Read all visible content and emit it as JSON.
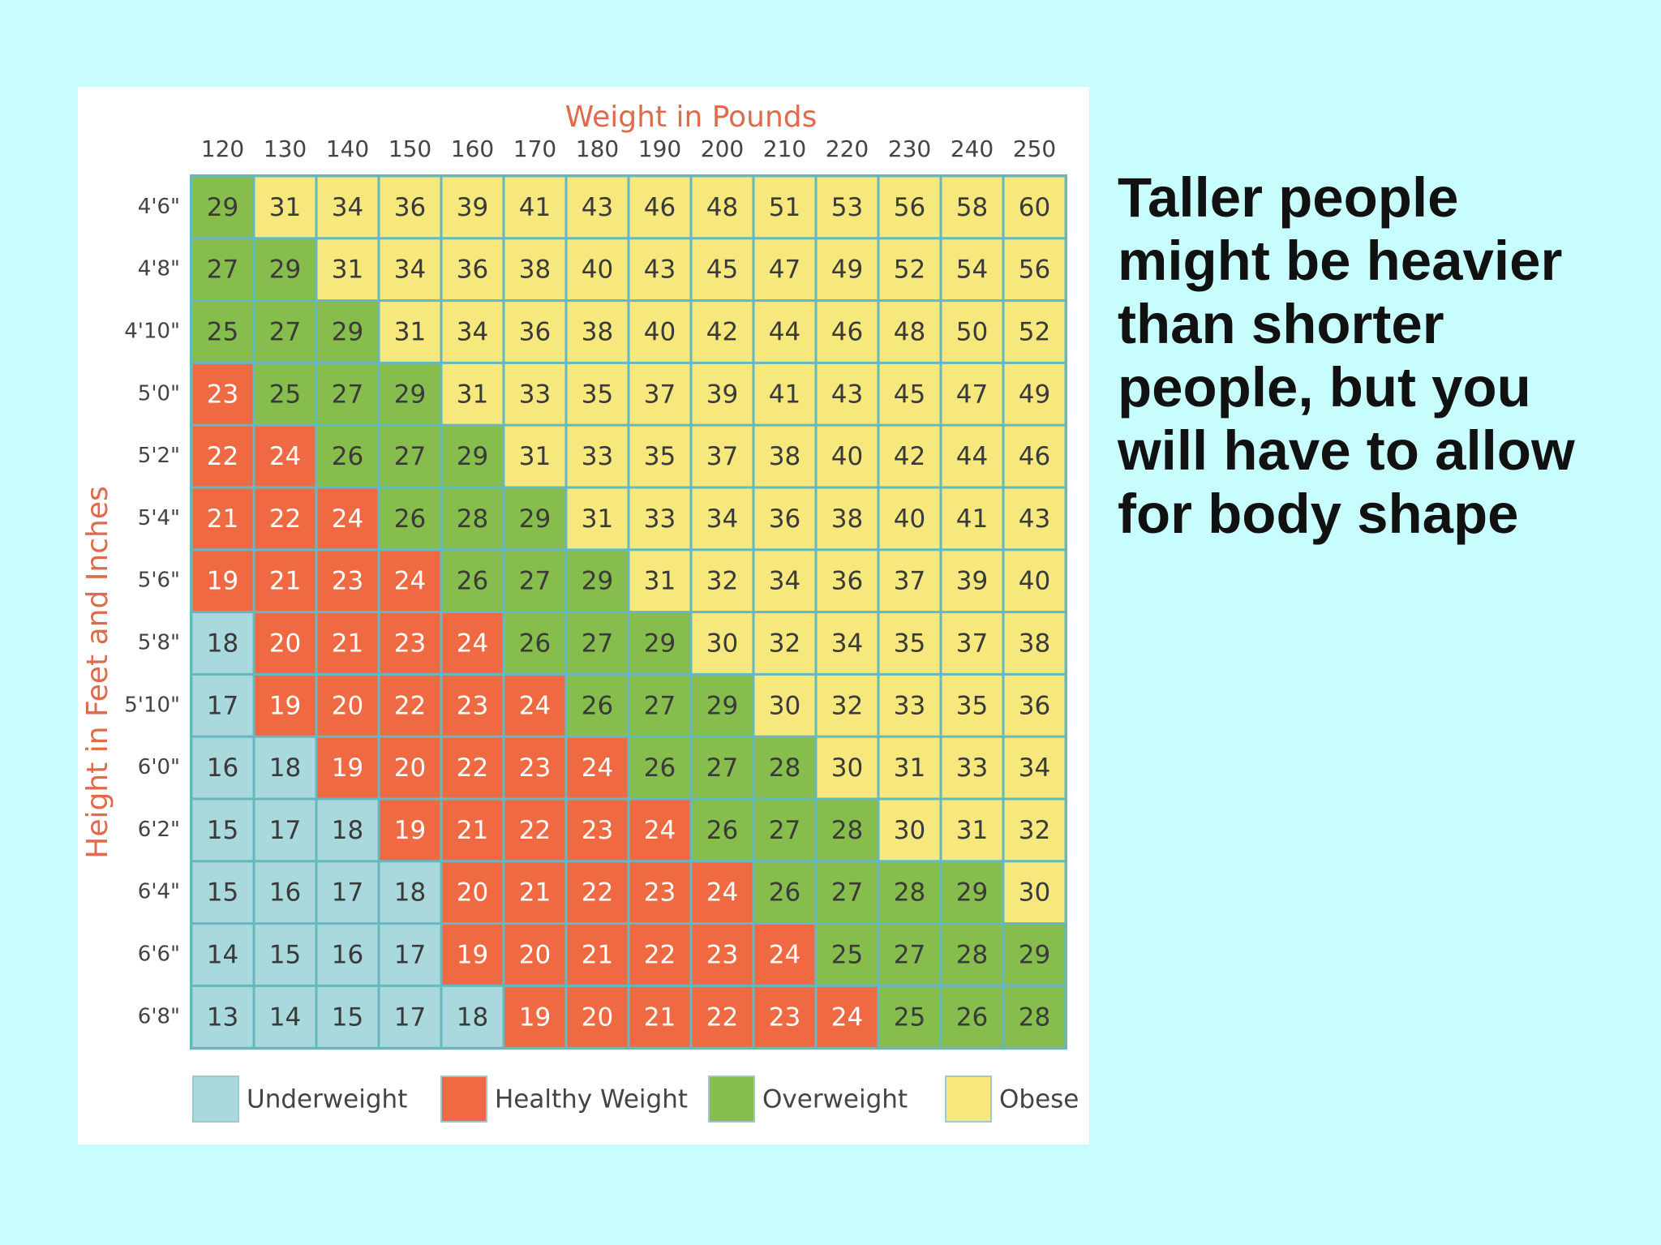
{
  "slide": {
    "caption_lines": [
      "Taller people",
      "might be heavier",
      "than shorter",
      "people, but you",
      "will have to allow",
      "for body shape"
    ]
  },
  "colors": {
    "page_background": "#c8fdfd",
    "panel_background": "#ffffff",
    "axis_title": "#e06a4c",
    "grid_line": "#66b8c0",
    "cell_text_dark": "#3a3a3a",
    "cell_text_light": "#ffffff"
  },
  "chart_data": {
    "type": "heatmap",
    "title": "",
    "xlabel": "Weight in Pounds",
    "ylabel": "Height in Feet and Inches",
    "x": [
      "120",
      "130",
      "140",
      "150",
      "160",
      "170",
      "180",
      "190",
      "200",
      "210",
      "220",
      "230",
      "240",
      "250"
    ],
    "y": [
      "4'6\"",
      "4'8\"",
      "4'10\"",
      "5'0\"",
      "5'2\"",
      "5'4\"",
      "5'6\"",
      "5'8\"",
      "5'10\"",
      "6'0\"",
      "6'2\"",
      "6'4\"",
      "6'6\"",
      "6'8\""
    ],
    "values": [
      [
        29,
        31,
        34,
        36,
        39,
        41,
        43,
        46,
        48,
        51,
        53,
        56,
        58,
        60
      ],
      [
        27,
        29,
        31,
        34,
        36,
        38,
        40,
        43,
        45,
        47,
        49,
        52,
        54,
        56
      ],
      [
        25,
        27,
        29,
        31,
        34,
        36,
        38,
        40,
        42,
        44,
        46,
        48,
        50,
        52
      ],
      [
        23,
        25,
        27,
        29,
        31,
        33,
        35,
        37,
        39,
        41,
        43,
        45,
        47,
        49
      ],
      [
        22,
        24,
        26,
        27,
        29,
        31,
        33,
        35,
        37,
        38,
        40,
        42,
        44,
        46
      ],
      [
        21,
        22,
        24,
        26,
        28,
        29,
        31,
        33,
        34,
        36,
        38,
        40,
        41,
        43
      ],
      [
        19,
        21,
        23,
        24,
        26,
        27,
        29,
        31,
        32,
        34,
        36,
        37,
        39,
        40
      ],
      [
        18,
        20,
        21,
        23,
        24,
        26,
        27,
        29,
        30,
        32,
        34,
        35,
        37,
        38
      ],
      [
        17,
        19,
        20,
        22,
        23,
        24,
        26,
        27,
        29,
        30,
        32,
        33,
        35,
        36
      ],
      [
        16,
        18,
        19,
        20,
        22,
        23,
        24,
        26,
        27,
        28,
        30,
        31,
        33,
        34
      ],
      [
        15,
        17,
        18,
        19,
        21,
        22,
        23,
        24,
        26,
        27,
        28,
        30,
        31,
        32
      ],
      [
        15,
        16,
        17,
        18,
        20,
        21,
        22,
        23,
        24,
        26,
        27,
        28,
        29,
        30
      ],
      [
        14,
        15,
        16,
        17,
        19,
        20,
        21,
        22,
        23,
        24,
        25,
        27,
        28,
        29
      ],
      [
        13,
        14,
        15,
        17,
        18,
        19,
        20,
        21,
        22,
        23,
        24,
        25,
        26,
        28
      ]
    ],
    "categories": [
      [
        2,
        3,
        3,
        3,
        3,
        3,
        3,
        3,
        3,
        3,
        3,
        3,
        3,
        3
      ],
      [
        2,
        2,
        3,
        3,
        3,
        3,
        3,
        3,
        3,
        3,
        3,
        3,
        3,
        3
      ],
      [
        2,
        2,
        2,
        3,
        3,
        3,
        3,
        3,
        3,
        3,
        3,
        3,
        3,
        3
      ],
      [
        1,
        2,
        2,
        2,
        3,
        3,
        3,
        3,
        3,
        3,
        3,
        3,
        3,
        3
      ],
      [
        1,
        1,
        2,
        2,
        2,
        3,
        3,
        3,
        3,
        3,
        3,
        3,
        3,
        3
      ],
      [
        1,
        1,
        1,
        2,
        2,
        2,
        3,
        3,
        3,
        3,
        3,
        3,
        3,
        3
      ],
      [
        1,
        1,
        1,
        1,
        2,
        2,
        2,
        3,
        3,
        3,
        3,
        3,
        3,
        3
      ],
      [
        0,
        1,
        1,
        1,
        1,
        2,
        2,
        2,
        3,
        3,
        3,
        3,
        3,
        3
      ],
      [
        0,
        1,
        1,
        1,
        1,
        1,
        2,
        2,
        2,
        3,
        3,
        3,
        3,
        3
      ],
      [
        0,
        0,
        1,
        1,
        1,
        1,
        1,
        2,
        2,
        2,
        3,
        3,
        3,
        3
      ],
      [
        0,
        0,
        0,
        1,
        1,
        1,
        1,
        1,
        2,
        2,
        2,
        3,
        3,
        3
      ],
      [
        0,
        0,
        0,
        0,
        1,
        1,
        1,
        1,
        1,
        2,
        2,
        2,
        2,
        3
      ],
      [
        0,
        0,
        0,
        0,
        1,
        1,
        1,
        1,
        1,
        1,
        2,
        2,
        2,
        2
      ],
      [
        0,
        0,
        0,
        0,
        0,
        1,
        1,
        1,
        1,
        1,
        1,
        2,
        2,
        2
      ]
    ],
    "legend": [
      {
        "name": "Underweight",
        "color": "#a9d9dc"
      },
      {
        "name": "Healthy Weight",
        "color": "#ef6a43"
      },
      {
        "name": "Overweight",
        "color": "#86bd4d"
      },
      {
        "name": "Obese",
        "color": "#f6e87d"
      }
    ],
    "legend_placement": "bottom"
  }
}
